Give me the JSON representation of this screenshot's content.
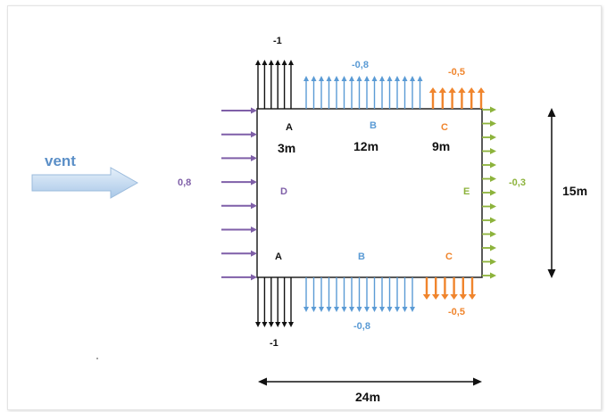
{
  "wind_label": "vent",
  "coefficients": {
    "left_top_corner": "-1",
    "top_middle": "-0,8",
    "top_right": "-0,5",
    "windward": "0,8",
    "leeward": "-0,3",
    "bottom_left_corner": "-1",
    "bottom_middle": "-0,8",
    "bottom_right": "-0,5"
  },
  "zones": {
    "top_a": "A",
    "top_b": "B",
    "top_c": "C",
    "windward_d": "D",
    "leeward_e": "E",
    "bottom_a": "A",
    "bottom_b": "B",
    "bottom_c": "C"
  },
  "zone_widths": {
    "a": "3m",
    "b": "12m",
    "c": "9m"
  },
  "dimensions": {
    "depth": "15m",
    "length": "24m"
  },
  "colors": {
    "black": "#111111",
    "blue": "#5b9bd5",
    "orange": "#f0852d",
    "purple": "#7f5fa8",
    "green": "#8db33c",
    "wind_arrow": "#b9d4ee"
  }
}
